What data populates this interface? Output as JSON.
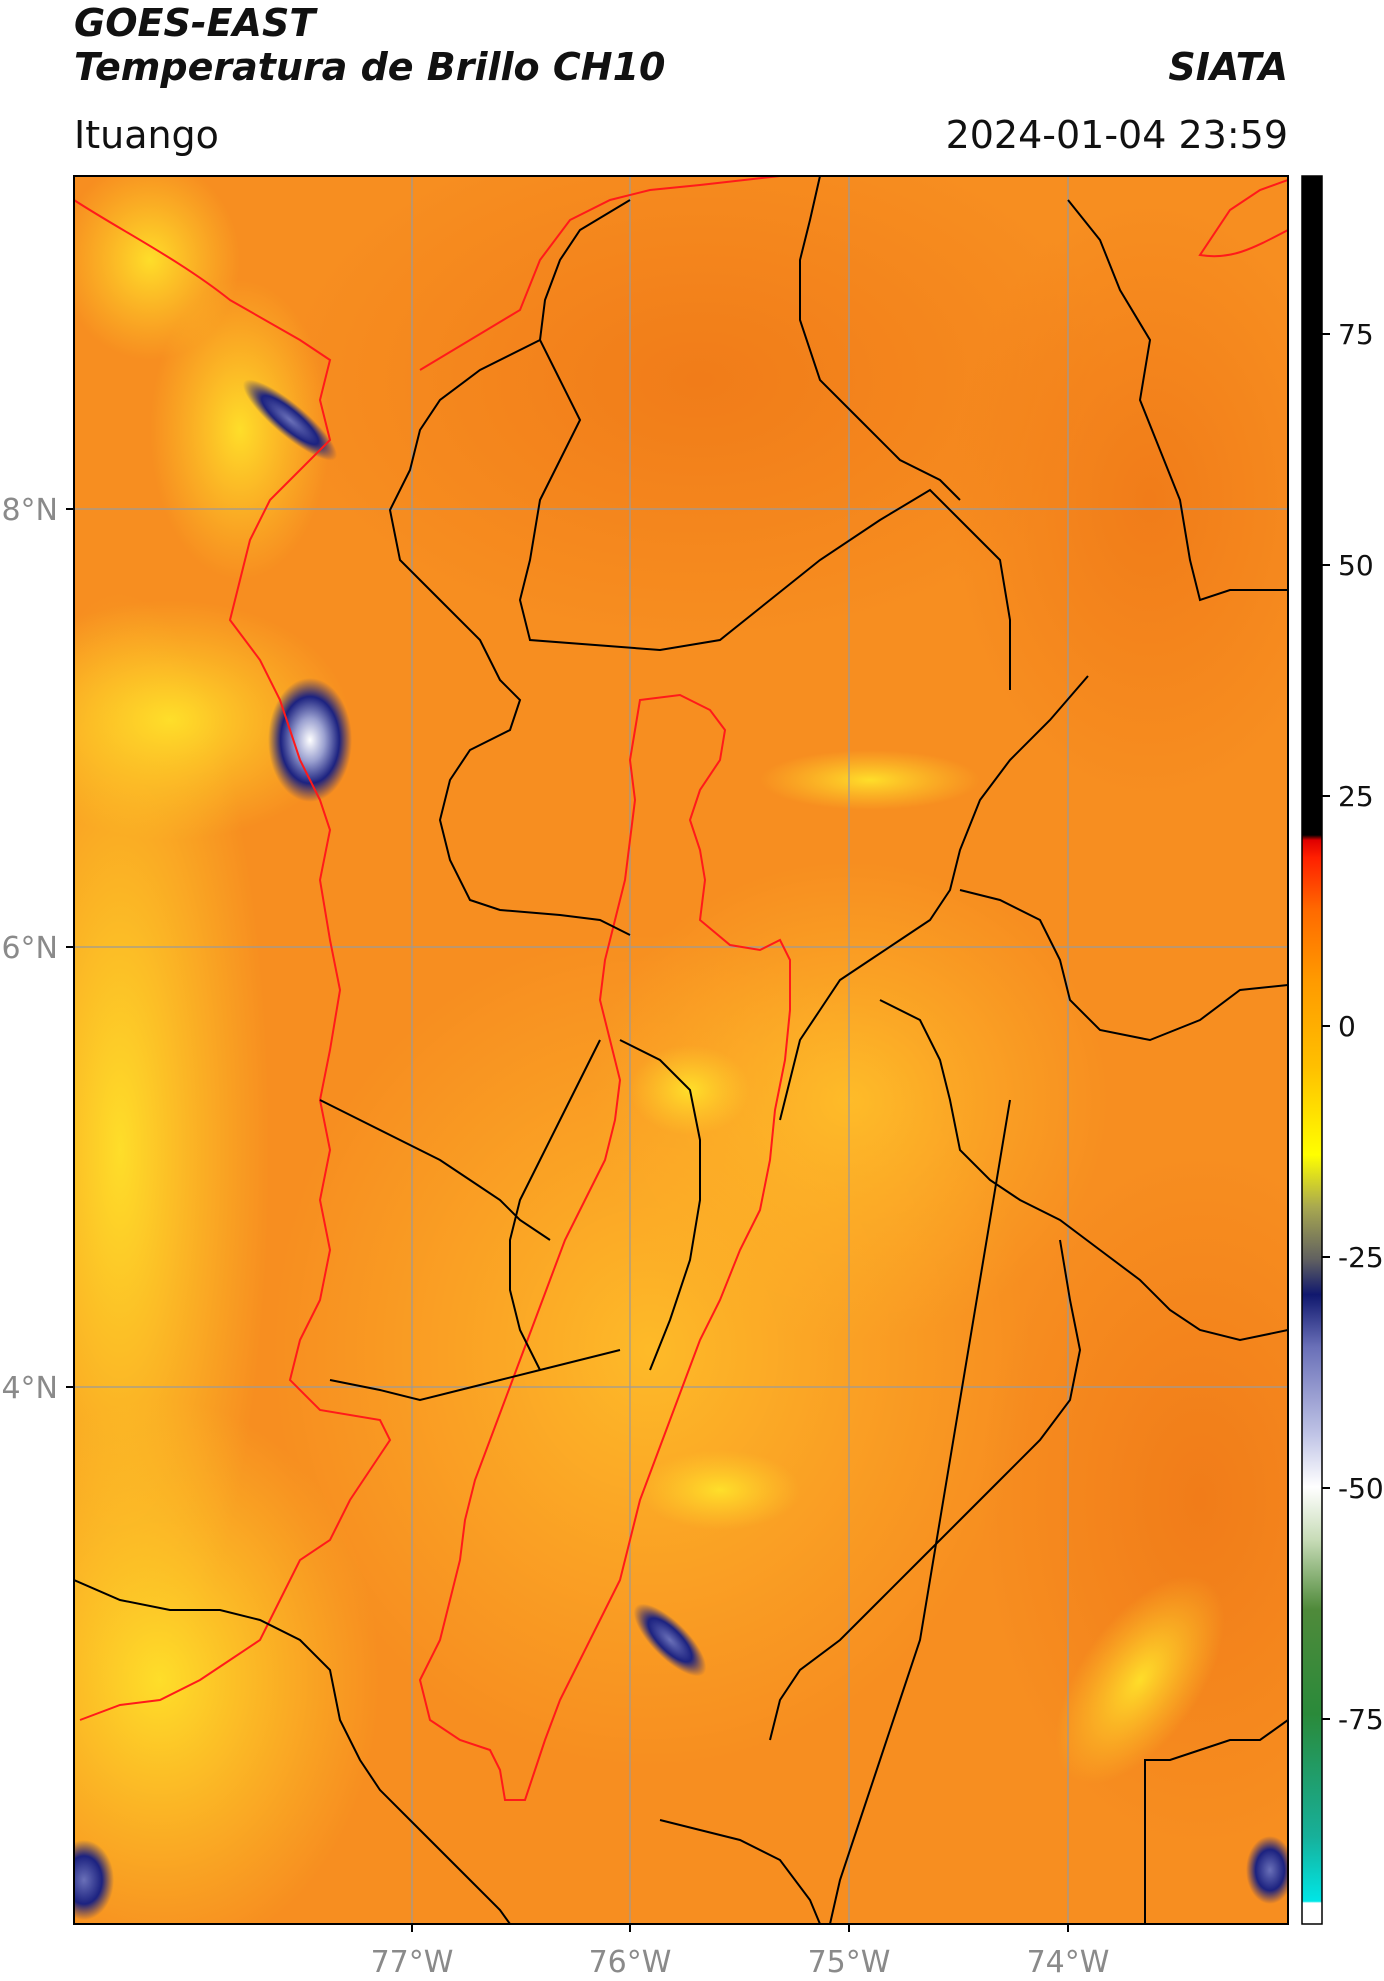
{
  "header": {
    "satellite": "GOES-EAST",
    "product": "Temperatura de Brillo CH10",
    "organization": "SIATA",
    "location": "Ituango",
    "timestamp": "2024-01-04 23:59"
  },
  "map": {
    "lat_ticks": [
      "8°N",
      "6°N",
      "4°N"
    ],
    "lon_ticks": [
      "77°W",
      "76°W",
      "75°W",
      "74°W"
    ]
  },
  "colorbar": {
    "ticks": [
      "75",
      "50",
      "25",
      "0",
      "-25",
      "-50",
      "-75"
    ]
  },
  "colors": {
    "background_orange": "#f58a1e",
    "warm_yellow": "#ffe62a",
    "cold_blue": "#1a1f7a",
    "basin_outline": "#ff1a1a",
    "borders": "#000000",
    "grid": "#9a9a9a",
    "tick_text": "#8a8a8a"
  }
}
